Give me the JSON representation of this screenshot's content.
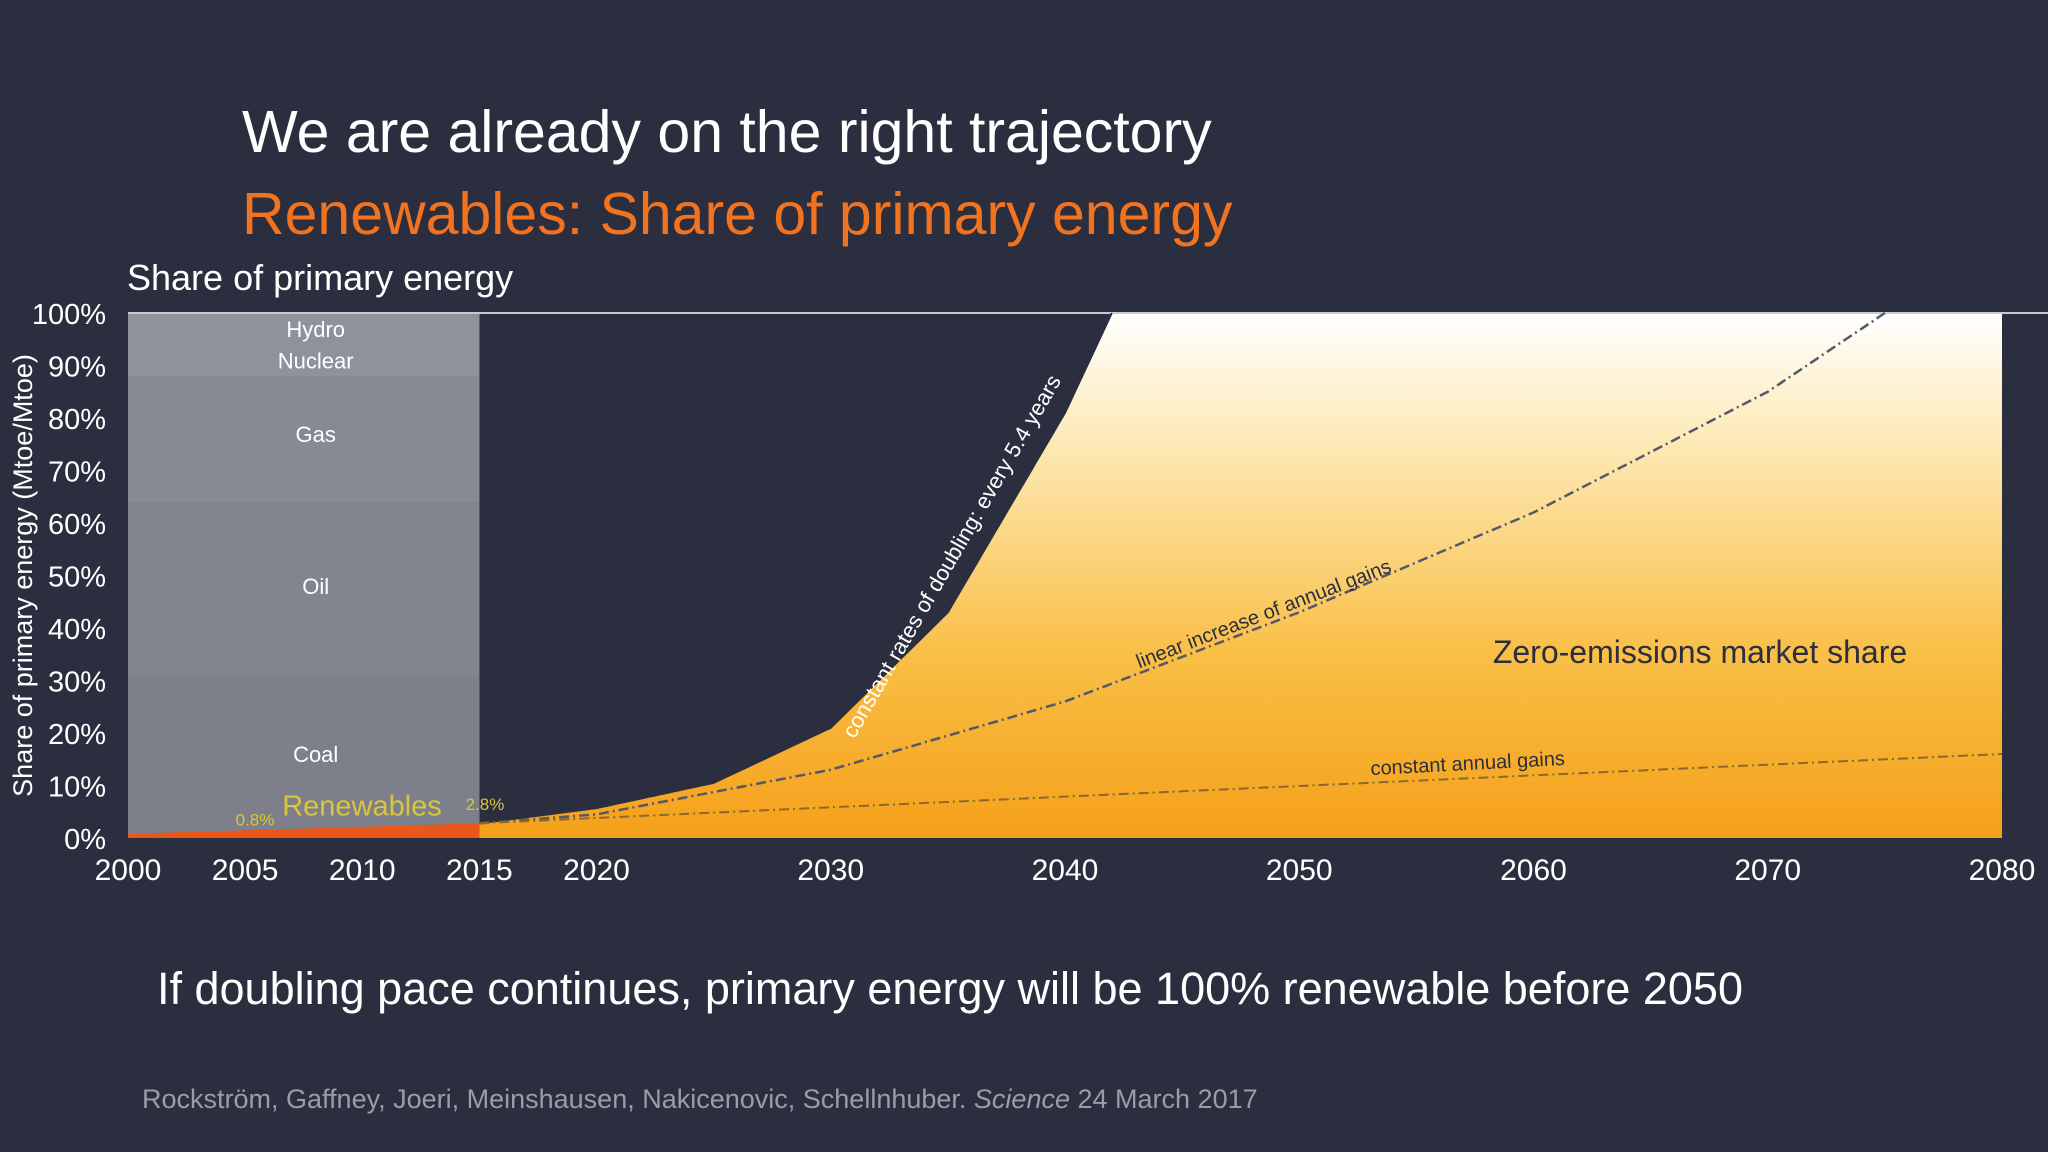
{
  "slide": {
    "title": "We are already on the right trajectory",
    "subtitle": "Renewables: Share of primary energy",
    "footnote": "If doubling pace continues, primary energy will be 100% renewable before 2050",
    "citation_authors": "Rockström, Gaffney, Joeri, Meinshausen, Nakicenovic, Schellnhuber.",
    "citation_journal": "Science",
    "citation_date": "24 March 2017"
  },
  "colors": {
    "background": "#2b2e3e",
    "title": "#ffffff",
    "subtitle": "#f2731f",
    "historical_panel": "#8a8d97",
    "orange_fill": "#f5a623",
    "light_fill": "#fff8e6",
    "renewables_label": "#d9c63a"
  },
  "chart_data": {
    "type": "area",
    "title": "Share of primary energy",
    "ylabel": "Share of primary energy (Mtoe/Mtoe)",
    "xlabel": "",
    "xlim": [
      2000,
      2080
    ],
    "ylim": [
      0,
      100
    ],
    "x_ticks": [
      "2000",
      "2005",
      "2010",
      "2015",
      "2020",
      "2030",
      "2040",
      "2050",
      "2060",
      "2070",
      "2080"
    ],
    "y_ticks": [
      "0%",
      "10%",
      "20%",
      "30%",
      "40%",
      "50%",
      "60%",
      "70%",
      "80%",
      "90%",
      "100%"
    ],
    "historical": {
      "range": [
        2000,
        2015
      ],
      "stack_labels": [
        "Hydro",
        "Nuclear",
        "Gas",
        "Oil",
        "Coal",
        "Renewables"
      ],
      "renewables_start_label": "0.8%",
      "renewables_end_label": "2.8%",
      "renewables_start": 0.8,
      "renewables_end": 2.8
    },
    "series": [
      {
        "name": "constant rates of doubling: every 5.4 years",
        "x": [
          2015,
          2020,
          2025,
          2030,
          2035,
          2040,
          2042
        ],
        "values": [
          2.8,
          5.7,
          10.5,
          21,
          43,
          81,
          100
        ]
      },
      {
        "name": "linear increase of annual gains",
        "x": [
          2015,
          2020,
          2030,
          2040,
          2050,
          2060,
          2070,
          2075
        ],
        "values": [
          2.8,
          4.5,
          13,
          26,
          43,
          62,
          85,
          100
        ]
      },
      {
        "name": "constant annual gains",
        "x": [
          2015,
          2080
        ],
        "values": [
          2.8,
          16
        ]
      }
    ],
    "annotations": [
      "Zero-emissions market share"
    ]
  }
}
